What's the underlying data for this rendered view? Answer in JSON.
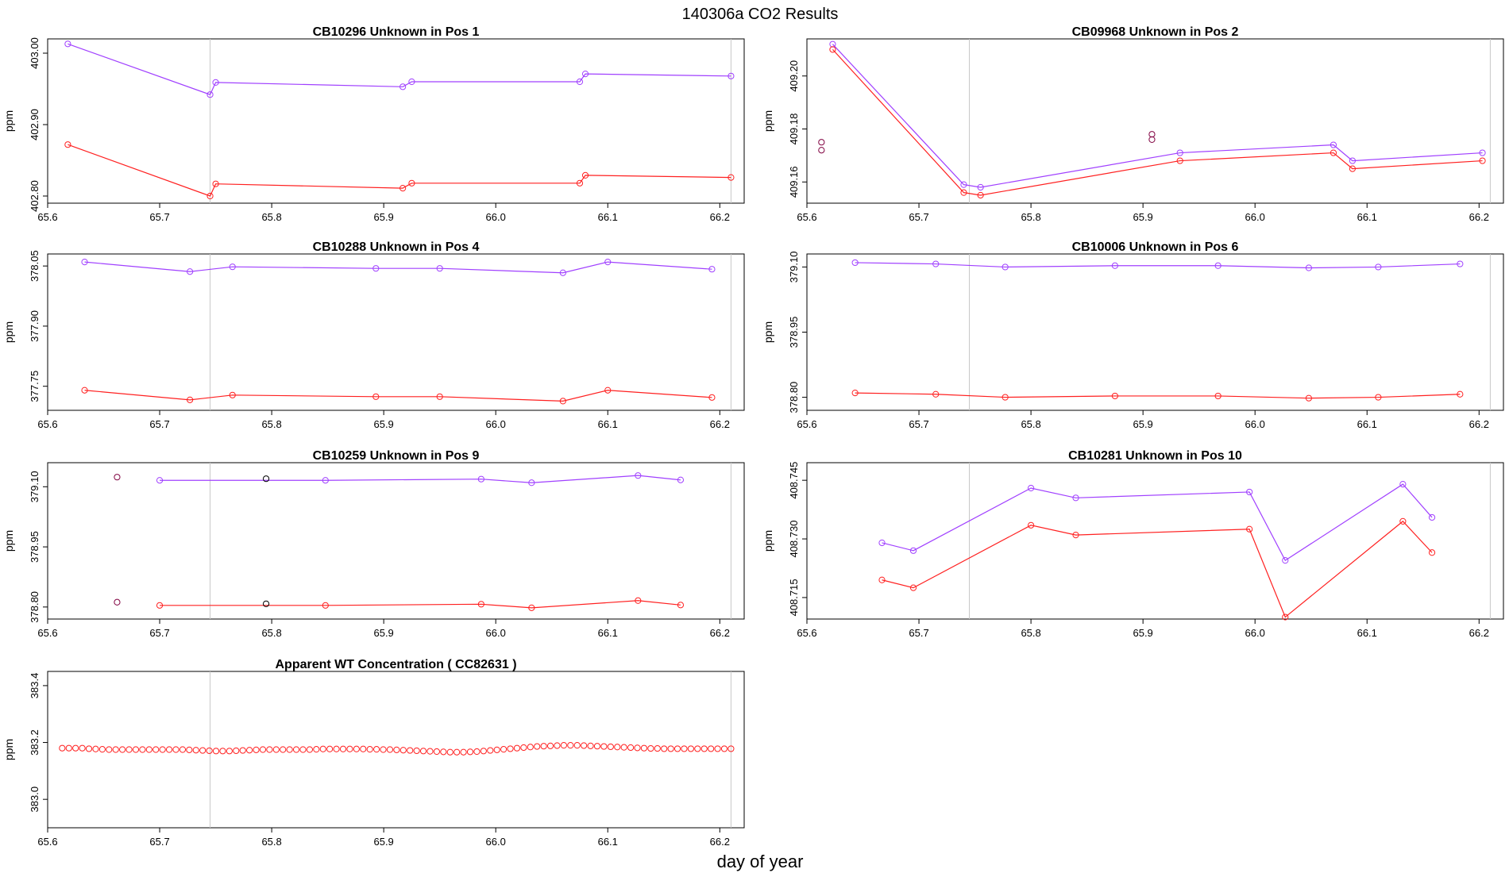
{
  "main_title": "140306a  CO2 Results",
  "x_label": "day of year",
  "colors": {
    "purple": "#a040ff",
    "red": "#ff2020",
    "black": "#000000",
    "grid": "#c8c8c8"
  },
  "chart_data": [
    {
      "type": "line",
      "title": "CB10296    Unknown in Pos 1",
      "ylabel": "ppm",
      "xlim": [
        65.6,
        66.2
      ],
      "ylim": [
        402.79,
        403.02
      ],
      "x_ticks": [
        "65.6",
        "65.7",
        "65.8",
        "65.9",
        "66.0",
        "66.1",
        "66.2"
      ],
      "y_ticks": [
        "402.80",
        "402.90",
        "403.00"
      ],
      "vlines": [
        65.745,
        66.21
      ],
      "series": [
        {
          "name": "purple",
          "color": "#a040ff",
          "x": [
            65.618,
            65.745,
            65.75,
            65.917,
            65.925,
            66.075,
            66.08,
            66.21
          ],
          "y": [
            403.013,
            402.942,
            402.959,
            402.953,
            402.96,
            402.96,
            402.971,
            402.968
          ]
        },
        {
          "name": "red",
          "color": "#ff2020",
          "x": [
            65.618,
            65.745,
            65.75,
            65.917,
            65.925,
            66.075,
            66.08,
            66.21
          ],
          "y": [
            402.872,
            402.8,
            402.817,
            402.811,
            402.818,
            402.818,
            402.829,
            402.826
          ]
        }
      ],
      "extra_points": []
    },
    {
      "type": "line",
      "title": "CB09968    Unknown in Pos 2",
      "ylabel": "ppm",
      "xlim": [
        65.6,
        66.2
      ],
      "ylim": [
        409.152,
        409.214
      ],
      "x_ticks": [
        "65.6",
        "65.7",
        "65.8",
        "65.9",
        "66.0",
        "66.1",
        "66.2"
      ],
      "y_ticks": [
        "409.16",
        "409.18",
        "409.20"
      ],
      "vlines": [
        65.745,
        66.21
      ],
      "series": [
        {
          "name": "purple",
          "color": "#a040ff",
          "x": [
            65.623,
            65.74,
            65.755,
            65.933,
            66.07,
            66.087,
            66.203
          ],
          "y": [
            409.212,
            409.159,
            409.158,
            409.171,
            409.174,
            409.168,
            409.171
          ]
        },
        {
          "name": "red",
          "color": "#ff2020",
          "x": [
            65.623,
            65.74,
            65.755,
            65.933,
            66.07,
            66.087,
            66.203
          ],
          "y": [
            409.21,
            409.156,
            409.155,
            409.168,
            409.171,
            409.165,
            409.168
          ]
        }
      ],
      "extra_points": [
        {
          "x": 65.613,
          "y": 409.175,
          "color": "#800040"
        },
        {
          "x": 65.613,
          "y": 409.172,
          "color": "#800040"
        },
        {
          "x": 65.908,
          "y": 409.178,
          "color": "#800040"
        },
        {
          "x": 65.908,
          "y": 409.176,
          "color": "#800040"
        }
      ]
    },
    {
      "type": "line",
      "title": "CB10288    Unknown in Pos 4",
      "ylabel": "ppm",
      "xlim": [
        65.6,
        66.2
      ],
      "ylim": [
        377.69,
        378.08
      ],
      "x_ticks": [
        "65.6",
        "65.7",
        "65.8",
        "65.9",
        "66.0",
        "66.1",
        "66.2"
      ],
      "y_ticks": [
        "377.75",
        "377.90",
        "378.05"
      ],
      "vlines": [
        65.745,
        66.21
      ],
      "series": [
        {
          "name": "purple",
          "color": "#a040ff",
          "x": [
            65.633,
            65.727,
            65.765,
            65.893,
            65.95,
            66.06,
            66.1,
            66.193
          ],
          "y": [
            378.06,
            378.036,
            378.048,
            378.044,
            378.044,
            378.033,
            378.06,
            378.042
          ]
        },
        {
          "name": "red",
          "color": "#ff2020",
          "x": [
            65.633,
            65.727,
            65.765,
            65.893,
            65.95,
            66.06,
            66.1,
            66.193
          ],
          "y": [
            377.74,
            377.716,
            377.728,
            377.724,
            377.724,
            377.713,
            377.74,
            377.722
          ]
        }
      ],
      "extra_points": []
    },
    {
      "type": "line",
      "title": "CB10006    Unknown in Pos 6",
      "ylabel": "ppm",
      "xlim": [
        65.6,
        66.2
      ],
      "ylim": [
        378.77,
        379.13
      ],
      "x_ticks": [
        "65.6",
        "65.7",
        "65.8",
        "65.9",
        "66.0",
        "66.1",
        "66.2"
      ],
      "y_ticks": [
        "378.80",
        "378.95",
        "379.10"
      ],
      "vlines": [
        65.745,
        66.21
      ],
      "series": [
        {
          "name": "purple",
          "color": "#a040ff",
          "x": [
            65.643,
            65.715,
            65.777,
            65.875,
            65.967,
            66.048,
            66.11,
            66.183
          ],
          "y": [
            379.11,
            379.107,
            379.1,
            379.103,
            379.103,
            379.098,
            379.1,
            379.107
          ]
        },
        {
          "name": "red",
          "color": "#ff2020",
          "x": [
            65.643,
            65.715,
            65.777,
            65.875,
            65.967,
            66.048,
            66.11,
            66.183
          ],
          "y": [
            378.81,
            378.807,
            378.8,
            378.803,
            378.803,
            378.798,
            378.8,
            378.807
          ]
        }
      ],
      "extra_points": []
    },
    {
      "type": "line",
      "title": "CB10259    Unknown in Pos 9",
      "ylabel": "ppm",
      "xlim": [
        65.6,
        66.2
      ],
      "ylim": [
        378.77,
        379.16
      ],
      "x_ticks": [
        "65.6",
        "65.7",
        "65.8",
        "65.9",
        "66.0",
        "66.1",
        "66.2"
      ],
      "y_ticks": [
        "378.80",
        "378.95",
        "379.10"
      ],
      "vlines": [
        65.745,
        66.21
      ],
      "series": [
        {
          "name": "purple",
          "color": "#a040ff",
          "x": [
            65.7,
            65.848,
            65.987,
            66.032,
            66.127,
            66.165
          ],
          "y": [
            379.116,
            379.116,
            379.119,
            379.11,
            379.128,
            379.117
          ]
        },
        {
          "name": "red",
          "color": "#ff2020",
          "x": [
            65.7,
            65.848,
            65.987,
            66.032,
            66.127,
            66.165
          ],
          "y": [
            378.804,
            378.804,
            378.807,
            378.798,
            378.816,
            378.805
          ]
        }
      ],
      "extra_points": [
        {
          "x": 65.662,
          "y": 379.124,
          "color": "#800040"
        },
        {
          "x": 65.662,
          "y": 378.812,
          "color": "#800040"
        },
        {
          "x": 65.795,
          "y": 379.12,
          "color": "#000000"
        },
        {
          "x": 65.795,
          "y": 378.808,
          "color": "#000000"
        }
      ]
    },
    {
      "type": "line",
      "title": "CB10281    Unknown in Pos 10",
      "ylabel": "ppm",
      "xlim": [
        65.6,
        66.2
      ],
      "ylim": [
        408.7095,
        408.7495
      ],
      "x_ticks": [
        "65.6",
        "65.7",
        "65.8",
        "65.9",
        "66.0",
        "66.1",
        "66.2"
      ],
      "y_ticks": [
        "408.715",
        "408.730",
        "408.745"
      ],
      "vlines": [
        65.745,
        66.21
      ],
      "series": [
        {
          "name": "purple",
          "color": "#a040ff",
          "x": [
            65.667,
            65.695,
            65.8,
            65.84,
            65.995,
            66.027,
            66.132,
            66.158
          ],
          "y": [
            408.729,
            408.727,
            408.743,
            408.7405,
            408.742,
            408.7245,
            408.744,
            408.7355
          ]
        },
        {
          "name": "red",
          "color": "#ff2020",
          "x": [
            65.667,
            65.695,
            65.8,
            65.84,
            65.995,
            66.027,
            66.132,
            66.158
          ],
          "y": [
            408.7195,
            408.7175,
            408.7335,
            408.731,
            408.7325,
            408.71,
            408.7345,
            408.7265
          ]
        }
      ],
      "extra_points": []
    },
    {
      "type": "scatter",
      "title": "Apparent WT Concentration ( CC82631 )",
      "ylabel": "ppm",
      "xlim": [
        65.6,
        66.2
      ],
      "ylim": [
        382.9,
        383.45
      ],
      "x_ticks": [
        "65.6",
        "65.7",
        "65.8",
        "65.9",
        "66.0",
        "66.1",
        "66.2"
      ],
      "y_ticks": [
        "383.0",
        "383.2",
        "383.4"
      ],
      "vlines": [
        65.745,
        66.21
      ],
      "series": [
        {
          "name": "red",
          "color": "#ff2020",
          "x_start": 65.613,
          "x_end": 66.21,
          "count": 101,
          "y": [
            383.18,
            383.18,
            383.18,
            383.18,
            383.178,
            383.177,
            383.176,
            383.175,
            383.175,
            383.175,
            383.175,
            383.175,
            383.175,
            383.175,
            383.175,
            383.175,
            383.175,
            383.175,
            383.175,
            383.174,
            383.173,
            383.172,
            383.171,
            383.17,
            383.17,
            383.17,
            383.171,
            383.172,
            383.173,
            383.174,
            383.175,
            383.175,
            383.175,
            383.175,
            383.175,
            383.175,
            383.175,
            383.175,
            383.176,
            383.177,
            383.177,
            383.177,
            383.177,
            383.177,
            383.177,
            383.177,
            383.176,
            383.176,
            383.175,
            383.175,
            383.174,
            383.173,
            383.172,
            383.171,
            383.17,
            383.169,
            383.168,
            383.167,
            383.166,
            383.166,
            383.166,
            383.167,
            383.168,
            383.17,
            383.172,
            383.174,
            383.176,
            383.178,
            383.18,
            383.182,
            383.184,
            383.186,
            383.187,
            383.188,
            383.189,
            383.19,
            383.19,
            383.19,
            383.189,
            383.188,
            383.187,
            383.186,
            383.185,
            383.184,
            383.183,
            383.182,
            383.181,
            383.18,
            383.179,
            383.179,
            383.178,
            383.178,
            383.178,
            383.178,
            383.178,
            383.178,
            383.178,
            383.178,
            383.178,
            383.178,
            383.178
          ]
        }
      ],
      "extra_points": []
    }
  ]
}
